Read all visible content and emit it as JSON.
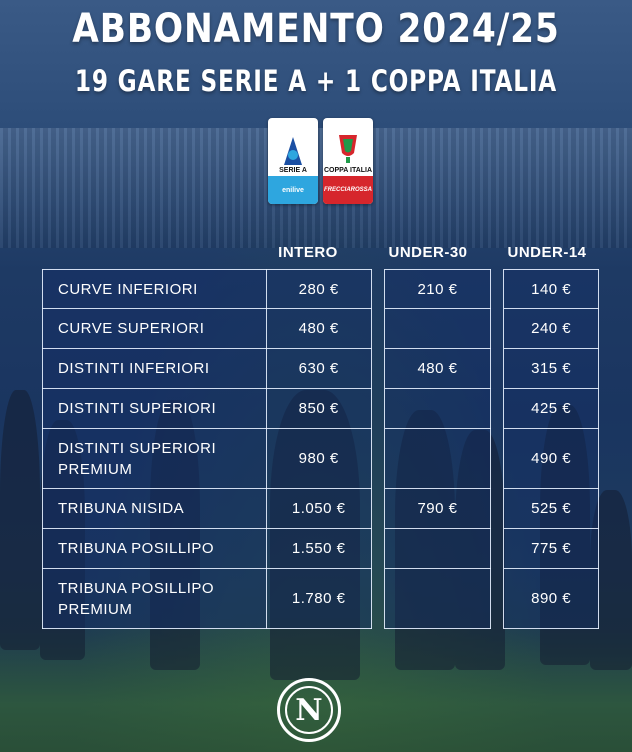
{
  "title": "ABBONAMENTO 2024/25",
  "subtitle": "19 GARE SERIE A + 1 COPPA ITALIA",
  "logos": {
    "serie_a": {
      "label": "SERIE A",
      "sponsor": "enilive"
    },
    "coppa_italia": {
      "label": "COPPA ITALIA",
      "sponsor": "FRECCIAROSSA"
    }
  },
  "columns": [
    "INTERO",
    "UNDER-30",
    "UNDER-14"
  ],
  "rows": [
    {
      "sector": "CURVE INFERIORI",
      "intero": "280 €",
      "under30": "210 €",
      "under14": "140 €"
    },
    {
      "sector": "CURVE SUPERIORI",
      "intero": "480 €",
      "under30": "",
      "under14": "240 €"
    },
    {
      "sector": "DISTINTI INFERIORI",
      "intero": "630 €",
      "under30": "480 €",
      "under14": "315 €"
    },
    {
      "sector": "DISTINTI SUPERIORI",
      "intero": "850 €",
      "under30": "",
      "under14": "425 €"
    },
    {
      "sector": "DISTINTI SUPERIORI PREMIUM",
      "intero": "980 €",
      "under30": "",
      "under14": "490 €"
    },
    {
      "sector": "TRIBUNA NISIDA",
      "intero": "1.050 €",
      "under30": "790 €",
      "under14": "525 €"
    },
    {
      "sector": "TRIBUNA POSILLIPO",
      "intero": "1.550 €",
      "under30": "",
      "under14": "775 €"
    },
    {
      "sector": "TRIBUNA POSILLIPO PREMIUM",
      "intero": "1.780 €",
      "under30": "",
      "under14": "890 €"
    }
  ],
  "crest_letter": "N"
}
